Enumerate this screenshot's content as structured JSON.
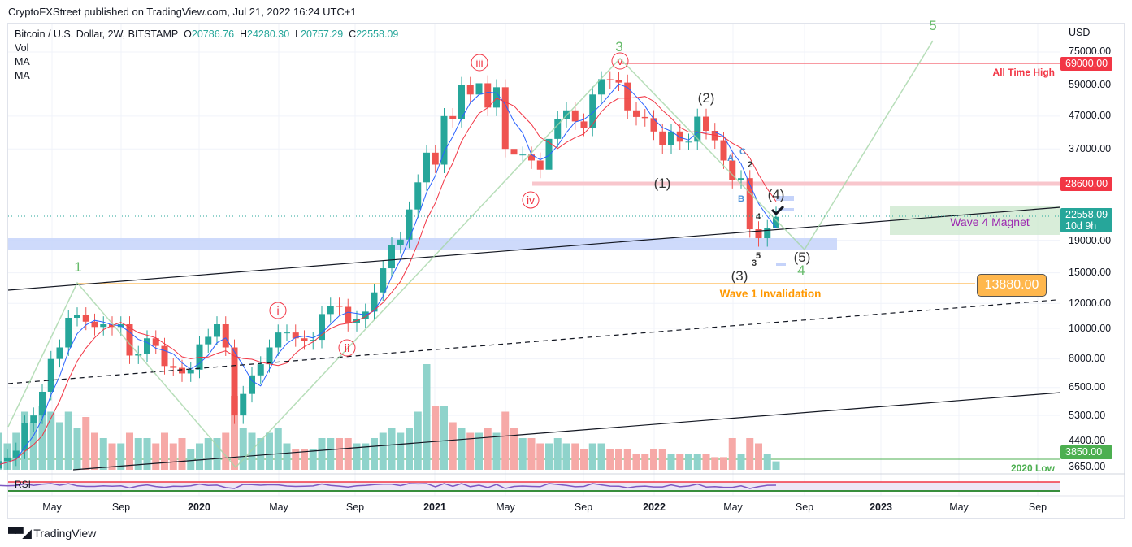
{
  "header": {
    "published": "CryptoFXStreet published on TradingView.com, Jul 21, 2022 16:24 UTC+1"
  },
  "legend": {
    "symbol": "Bitcoin / U.S. Dollar, 2W, BITSTAMP",
    "o_label": "O",
    "o": "20786.76",
    "h_label": "H",
    "h": "24280.30",
    "l_label": "L",
    "l": "20757.29",
    "c_label": "C",
    "c": "22558.09",
    "vol": "Vol",
    "ma1": "MA",
    "ma2": "MA"
  },
  "price_axis": {
    "currency": "USD",
    "ticks": [
      "75000.00",
      "59000.00",
      "47000.00",
      "37000.00",
      "19000.00",
      "15000.00",
      "12000.00",
      "10000.00",
      "8000.00",
      "6500.00",
      "5300.00",
      "4400.00",
      "3650.00"
    ]
  },
  "price_labels": {
    "ath": "69000.00",
    "resist": "28600.00",
    "last": "22558.09",
    "countdown": "10d 9h",
    "invalid": "13880.00",
    "low2020": "3850.00"
  },
  "annotations": {
    "ath": "All Time High",
    "magnet": "Wave 4 Magnet",
    "invalidation": "Wave 1 Invalidation",
    "low2020": "2020 Low",
    "green_waves": [
      "1",
      "3",
      "5",
      "4"
    ],
    "minor_circled": [
      "i",
      "ii",
      "iii",
      "iv",
      "v"
    ],
    "intermediate": [
      "(1)",
      "(2)",
      "(3)",
      "(4)",
      "(5)"
    ],
    "abc": [
      "A",
      "B",
      "C"
    ],
    "minute": [
      "2",
      "4",
      "5",
      "3"
    ]
  },
  "time_axis": [
    "May",
    "Sep",
    "2020",
    "May",
    "Sep",
    "2021",
    "May",
    "Sep",
    "2022",
    "May",
    "Sep",
    "2023",
    "May",
    "Sep"
  ],
  "rsi": {
    "label": "RSI"
  },
  "watermark": "TradingView",
  "colors": {
    "up": "#26a69a",
    "down": "#ef5350",
    "vol_up": "#8fd3cb",
    "vol_down": "#f6a9a7",
    "ma_fast": "#2962ff",
    "ma_slow": "#f23645",
    "ath": "#f23645",
    "invalid": "#ffb74d",
    "low2020": "#4caf50",
    "magnet_text": "#9c27b0",
    "wave_green": "#66bb6a"
  },
  "chart_data": {
    "type": "candlestick",
    "interval": "2W",
    "scale": "log",
    "ylim": [
      3650,
      80000
    ],
    "start": "2019-02",
    "end": "2022-07",
    "closes": [
      3600,
      3800,
      3900,
      4100,
      5000,
      5300,
      6300,
      8000,
      8700,
      10800,
      11000,
      10500,
      10100,
      10300,
      10100,
      10300,
      8200,
      8300,
      9300,
      8800,
      7600,
      7500,
      7200,
      7400,
      8900,
      9400,
      10300,
      8700,
      5300,
      6200,
      7100,
      7700,
      8700,
      9700,
      9700,
      9300,
      9100,
      9200,
      11100,
      11800,
      11700,
      10400,
      10700,
      11300,
      13000,
      15500,
      18400,
      19100,
      23800,
      29000,
      36000,
      33000,
      47000,
      46000,
      59000,
      55000,
      59700,
      50000,
      58000,
      37000,
      35500,
      35500,
      34000,
      31800,
      39800,
      46000,
      49000,
      45200,
      43200,
      55000,
      61500,
      61000,
      60000,
      49000,
      46700,
      46300,
      42000,
      38000,
      42000,
      39000,
      39000,
      46800,
      42200,
      39400,
      34000,
      29500,
      29900,
      20600,
      19300,
      20786.76,
      22558.09
    ],
    "last_candle": {
      "open": 20786.76,
      "high": 24280.3,
      "low": 20757.29,
      "close": 22558.09
    },
    "volume_relative": [
      30,
      35,
      25,
      35,
      55,
      45,
      60,
      55,
      45,
      55,
      40,
      50,
      35,
      30,
      25,
      25,
      35,
      30,
      30,
      25,
      35,
      25,
      30,
      20,
      25,
      30,
      30,
      35,
      70,
      40,
      35,
      30,
      35,
      40,
      25,
      20,
      20,
      20,
      30,
      30,
      30,
      30,
      25,
      25,
      30,
      35,
      40,
      35,
      40,
      55,
      100,
      60,
      60,
      45,
      40,
      35,
      35,
      40,
      35,
      55,
      40,
      30,
      30,
      25,
      25,
      30,
      25,
      25,
      20,
      25,
      25,
      20,
      20,
      20,
      15,
      15,
      20,
      20,
      15,
      15,
      15,
      15,
      15,
      12,
      12,
      30,
      15,
      30,
      25,
      15,
      8
    ],
    "levels": {
      "all_time_high": 69000,
      "resistance": 28600,
      "wave1_invalidation": 13880,
      "low_2020": 3850
    }
  }
}
